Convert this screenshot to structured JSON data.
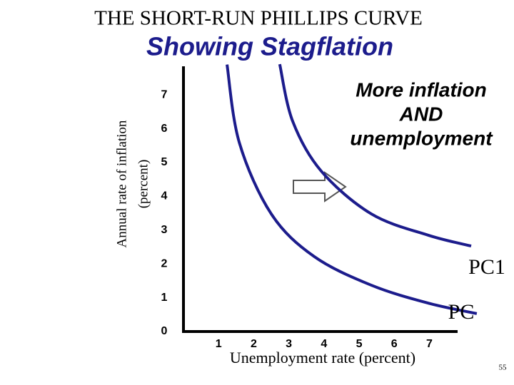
{
  "chart_data": {
    "type": "line",
    "title": "THE SHORT-RUN PHILLIPS CURVE",
    "subtitle": "Showing Stagflation",
    "y_label_lines": [
      "Annual rate of inflation",
      "(percent)"
    ],
    "x_label": "Unemployment rate (percent)",
    "annotation_lines": [
      "More inflation",
      "AND",
      "unemployment"
    ],
    "page_number": "55",
    "xlim": [
      0,
      7.8
    ],
    "ylim": [
      0,
      7.8
    ],
    "xticks": [
      1,
      2,
      3,
      4,
      5,
      6,
      7
    ],
    "yticks": [
      0,
      1,
      2,
      3,
      4,
      5,
      6,
      7
    ],
    "series": [
      {
        "name": "PC",
        "color": "#1c1c8c",
        "x": [
          1.24,
          1.59,
          2.5,
          3.72,
          5.35,
          6.97,
          8.35
        ],
        "values": [
          7.9,
          5.59,
          3.48,
          2.22,
          1.37,
          0.84,
          0.53
        ]
      },
      {
        "name": "PC1",
        "color": "#1c1c8c",
        "x": [
          2.74,
          3.11,
          3.92,
          5.35,
          6.97,
          8.19
        ],
        "values": [
          7.91,
          6.22,
          4.75,
          3.48,
          2.85,
          2.53
        ]
      }
    ]
  }
}
